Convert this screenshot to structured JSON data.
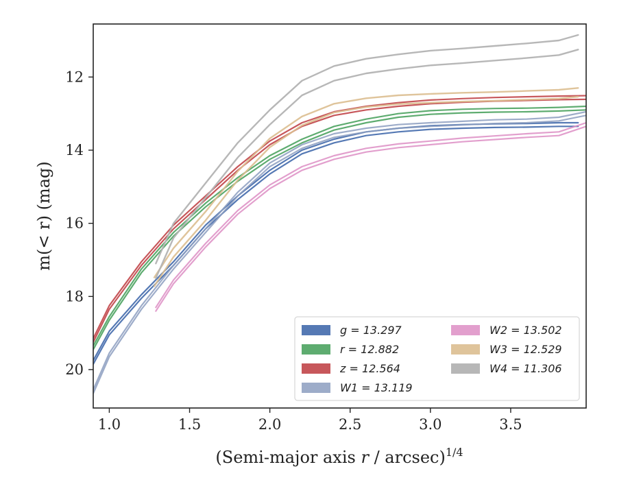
{
  "chart_data": {
    "type": "line",
    "title": "",
    "xlabel_main": "(Semi-major axis ",
    "xlabel_var": "r",
    "xlabel_unit": " / arcsec)",
    "xlabel_sup": "1/4",
    "ylabel": "m(< r) (mag)",
    "xlim": [
      0.9,
      3.97
    ],
    "ylim": [
      21.05,
      10.55
    ],
    "y_inverted": true,
    "grid": false,
    "legend_position": "lower-right",
    "xticks": [
      1.0,
      1.5,
      2.0,
      2.5,
      3.0,
      3.5
    ],
    "xtick_labels": [
      "1.0",
      "1.5",
      "2.0",
      "2.5",
      "3.0",
      "3.5"
    ],
    "yticks": [
      12,
      14,
      16,
      18,
      20
    ],
    "ytick_labels": [
      "12",
      "14",
      "16",
      "18",
      "20"
    ],
    "series": [
      {
        "name": "g = 13.297",
        "color": "#4c72b0",
        "opacity": 0.95,
        "width": 2.2,
        "band": 0.05,
        "x": [
          0.9,
          1.0,
          1.2,
          1.4,
          1.6,
          1.8,
          2.0,
          2.2,
          2.4,
          2.6,
          2.8,
          3.0,
          3.2,
          3.4,
          3.6,
          3.8,
          3.92
        ],
        "y": [
          19.8,
          19.0,
          18.0,
          17.1,
          16.1,
          15.3,
          14.6,
          14.05,
          13.75,
          13.55,
          13.45,
          13.38,
          13.35,
          13.33,
          13.32,
          13.3,
          13.3
        ]
      },
      {
        "name": "r = 12.882",
        "color": "#55a868",
        "opacity": 0.95,
        "width": 2.2,
        "band": 0.05,
        "x": [
          0.9,
          1.0,
          1.2,
          1.4,
          1.6,
          1.8,
          2.0,
          2.2,
          2.4,
          2.6,
          2.8,
          3.0,
          3.2,
          3.4,
          3.6,
          3.8,
          3.97
        ],
        "y": [
          19.4,
          18.6,
          17.3,
          16.3,
          15.5,
          14.8,
          14.2,
          13.75,
          13.4,
          13.2,
          13.05,
          12.97,
          12.93,
          12.91,
          12.9,
          12.88,
          12.85
        ]
      },
      {
        "name": "z = 12.564",
        "color": "#c44e52",
        "opacity": 0.95,
        "width": 2.2,
        "band": 0.05,
        "x": [
          0.9,
          1.0,
          1.2,
          1.4,
          1.6,
          1.8,
          2.0,
          2.2,
          2.4,
          2.6,
          2.8,
          3.0,
          3.2,
          3.4,
          3.6,
          3.8,
          3.97
        ],
        "y": [
          19.2,
          18.3,
          17.1,
          16.1,
          15.3,
          14.5,
          13.8,
          13.3,
          13.0,
          12.85,
          12.75,
          12.68,
          12.64,
          12.61,
          12.59,
          12.57,
          12.56
        ]
      },
      {
        "name": "W1 = 13.119",
        "color": "#8c9dc0",
        "opacity": 0.85,
        "width": 2.2,
        "band": 0.05,
        "x": [
          0.9,
          1.0,
          1.2,
          1.4,
          1.6,
          1.8,
          2.0,
          2.2,
          2.4,
          2.6,
          2.8,
          3.0,
          3.2,
          3.4,
          3.6,
          3.8,
          3.97
        ],
        "y": [
          20.6,
          19.6,
          18.3,
          17.2,
          16.2,
          15.2,
          14.4,
          13.9,
          13.6,
          13.45,
          13.35,
          13.3,
          13.26,
          13.22,
          13.2,
          13.15,
          13.0
        ]
      },
      {
        "name": "W2 = 13.502",
        "color": "#dd8ec4",
        "opacity": 0.85,
        "width": 2.2,
        "band": 0.05,
        "x": [
          1.29,
          1.4,
          1.6,
          1.8,
          2.0,
          2.2,
          2.4,
          2.6,
          2.8,
          3.0,
          3.2,
          3.4,
          3.6,
          3.8,
          3.97
        ],
        "y": [
          18.35,
          17.6,
          16.6,
          15.7,
          15.0,
          14.5,
          14.2,
          14.0,
          13.88,
          13.8,
          13.72,
          13.66,
          13.6,
          13.55,
          13.3
        ]
      },
      {
        "name": "W3 = 12.529",
        "color": "#dcbe90",
        "opacity": 0.9,
        "width": 2.4,
        "band": 0.12,
        "x": [
          1.28,
          1.4,
          1.6,
          1.8,
          2.0,
          2.2,
          2.4,
          2.6,
          2.8,
          3.0,
          3.2,
          3.4,
          3.6,
          3.8,
          3.92
        ],
        "y": [
          17.6,
          16.8,
          15.8,
          14.7,
          13.8,
          13.2,
          12.85,
          12.7,
          12.62,
          12.58,
          12.55,
          12.53,
          12.5,
          12.47,
          12.42
        ]
      },
      {
        "name": "W4 = 11.306",
        "color": "#b3b3b3",
        "opacity": 0.95,
        "width": 2.4,
        "band": 0.2,
        "x": [
          1.29,
          1.4,
          1.6,
          1.8,
          2.0,
          2.2,
          2.4,
          2.6,
          2.8,
          3.0,
          3.2,
          3.4,
          3.6,
          3.8,
          3.92
        ],
        "y": [
          17.3,
          16.2,
          15.1,
          14.0,
          13.1,
          12.3,
          11.9,
          11.7,
          11.58,
          11.48,
          11.42,
          11.35,
          11.28,
          11.2,
          11.05
        ]
      }
    ]
  }
}
